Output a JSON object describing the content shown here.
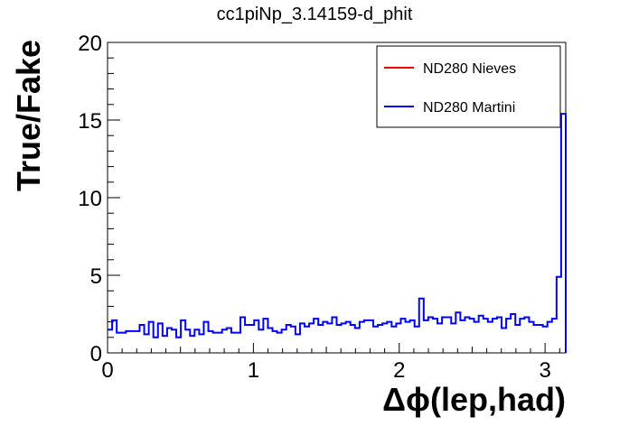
{
  "chart_data": {
    "type": "line",
    "title": "cc1piNp_3.14159-d_phit",
    "xlabel": "Δϕ(lep,had)",
    "ylabel": "True/Fake",
    "xlim": [
      0,
      3.14159
    ],
    "ylim": [
      0,
      20
    ],
    "x_ticks": [
      0,
      1,
      2,
      3
    ],
    "y_ticks": [
      0,
      5,
      10,
      15,
      20
    ],
    "x_tick_labels": [
      "0",
      "1",
      "2",
      "3"
    ],
    "y_tick_labels": [
      "0",
      "5",
      "10",
      "15",
      "20"
    ],
    "legend_position": "top-right",
    "grid": false,
    "bins": 100,
    "series": [
      {
        "name": "ND280 Nieves",
        "color": "#ff0000",
        "values": []
      },
      {
        "name": "ND280 Martini",
        "color": "#0000ff",
        "values": [
          1.5,
          2.1,
          1.3,
          1.3,
          1.4,
          1.4,
          1.4,
          1.8,
          1.2,
          2.0,
          1.0,
          1.9,
          1.1,
          1.6,
          1.5,
          1.0,
          2.1,
          1.5,
          1.1,
          1.5,
          1.2,
          2.0,
          1.4,
          1.3,
          1.3,
          1.5,
          1.6,
          1.3,
          1.3,
          2.3,
          1.8,
          1.8,
          2.1,
          1.5,
          2.2,
          1.6,
          1.4,
          1.3,
          1.5,
          1.8,
          1.7,
          1.2,
          1.9,
          1.7,
          1.9,
          2.2,
          1.8,
          2.0,
          1.9,
          2.3,
          1.8,
          1.9,
          2.0,
          1.8,
          1.6,
          2.0,
          2.1,
          2.1,
          1.7,
          1.8,
          1.9,
          2.0,
          1.7,
          1.9,
          2.2,
          2.0,
          2.1,
          1.7,
          3.5,
          2.1,
          2.3,
          2.2,
          1.9,
          2.3,
          2.3,
          1.9,
          2.6,
          2.1,
          2.3,
          2.2,
          2.0,
          2.4,
          2.2,
          2.0,
          2.2,
          2.3,
          1.6,
          2.2,
          2.5,
          1.8,
          2.2,
          2.3,
          2.0,
          1.8,
          1.8,
          1.7,
          2.0,
          2.2,
          4.9,
          15.4
        ]
      }
    ]
  }
}
